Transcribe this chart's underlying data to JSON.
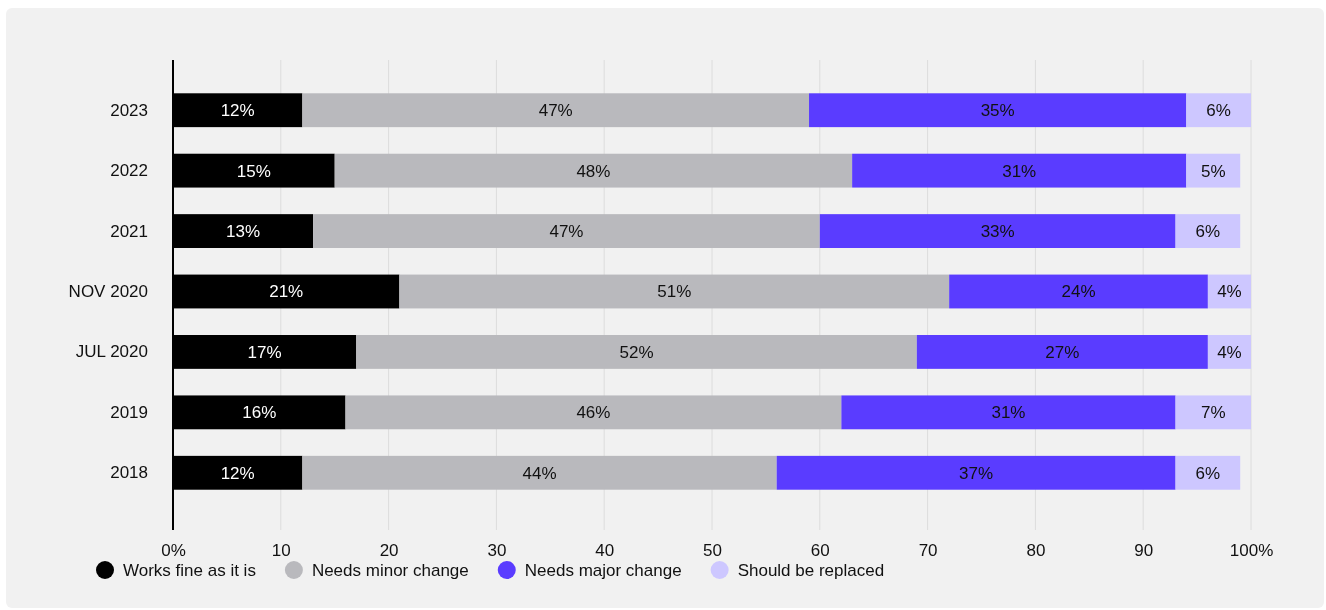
{
  "chart_data": {
    "type": "bar",
    "orientation": "horizontal",
    "stacked": true,
    "categories": [
      "2023",
      "2022",
      "2021",
      "NOV 2020",
      "JUL 2020",
      "2019",
      "2018"
    ],
    "series": [
      {
        "name": "Works fine as it is",
        "color": "#000000",
        "values": [
          12,
          15,
          13,
          21,
          17,
          16,
          12
        ],
        "value_labels": [
          "12%",
          "15%",
          "13%",
          "21%",
          "17%",
          "16%",
          "12%"
        ]
      },
      {
        "name": "Needs minor change",
        "color": "#b9b9bd",
        "values": [
          47,
          48,
          47,
          51,
          52,
          46,
          44
        ],
        "value_labels": [
          "47%",
          "48%",
          "47%",
          "51%",
          "52%",
          "46%",
          "44%"
        ]
      },
      {
        "name": "Needs major change",
        "color": "#5a3cff",
        "values": [
          35,
          31,
          33,
          24,
          27,
          31,
          37
        ],
        "value_labels": [
          "35%",
          "31%",
          "33%",
          "24%",
          "27%",
          "31%",
          "37%"
        ]
      },
      {
        "name": "Should be replaced",
        "color": "#cdc7ff",
        "values": [
          6,
          5,
          6,
          4,
          4,
          7,
          6
        ],
        "value_labels": [
          "6%",
          "5%",
          "6%",
          "4%",
          "4%",
          "7%",
          "6%"
        ]
      }
    ],
    "xlim": [
      0,
      100
    ],
    "xticks": [
      {
        "value": 0,
        "label": "0%"
      },
      10,
      20,
      30,
      40,
      50,
      60,
      70,
      80,
      90,
      {
        "value": 100,
        "label": "100%"
      }
    ],
    "grid": "x",
    "legend": "bottom left"
  }
}
